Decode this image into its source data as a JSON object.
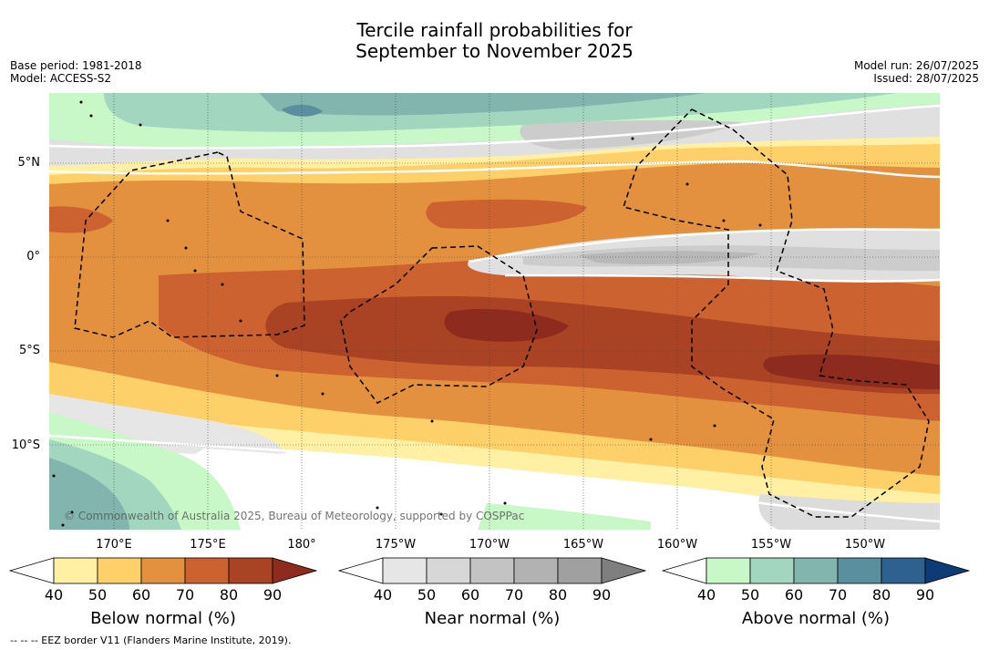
{
  "title": {
    "line1": "Tercile rainfall probabilities for",
    "line2": "September to November 2025"
  },
  "meta_left": {
    "base_period": "Base period: 1981-2018",
    "model": "Model: ACCESS-S2"
  },
  "meta_right": {
    "model_run": "Model run: 26/07/2025",
    "issued": "Issued: 28/07/2025"
  },
  "map": {
    "lat_labels": [
      "5°N",
      "0°",
      "5°S",
      "10°S"
    ],
    "lon_labels": [
      "170°E",
      "175°E",
      "180°",
      "175°W",
      "170°W",
      "165°W",
      "160°W",
      "155°W",
      "150°W"
    ],
    "copyright": "© Commonwealth of Australia 2025, Bureau of Meteorology, supported by COSPPac"
  },
  "colorbars": [
    {
      "title": "Below normal (%)",
      "ticks": [
        "40",
        "50",
        "60",
        "70",
        "80",
        "90"
      ],
      "colors": [
        "#fff0a4",
        "#fdd06a",
        "#e3913f",
        "#cd6231",
        "#aa4324",
        "#8c2b1e"
      ]
    },
    {
      "title": "Near normal (%)",
      "ticks": [
        "40",
        "50",
        "60",
        "70",
        "80",
        "90"
      ],
      "colors": [
        "#e6e6e6",
        "#d7d7d7",
        "#c3c3c3",
        "#b2b2b2",
        "#a0a0a0",
        "#7f7f7f"
      ]
    },
    {
      "title": "Above normal (%)",
      "ticks": [
        "40",
        "50",
        "60",
        "70",
        "80",
        "90"
      ],
      "colors": [
        "#c8f7c8",
        "#a2d6bf",
        "#81b5ad",
        "#5a909e",
        "#2e6090",
        "#0d3b75"
      ]
    }
  ],
  "footer": "-- -- -- EEZ border V11 (Flanders Marine Institute, 2019)."
}
